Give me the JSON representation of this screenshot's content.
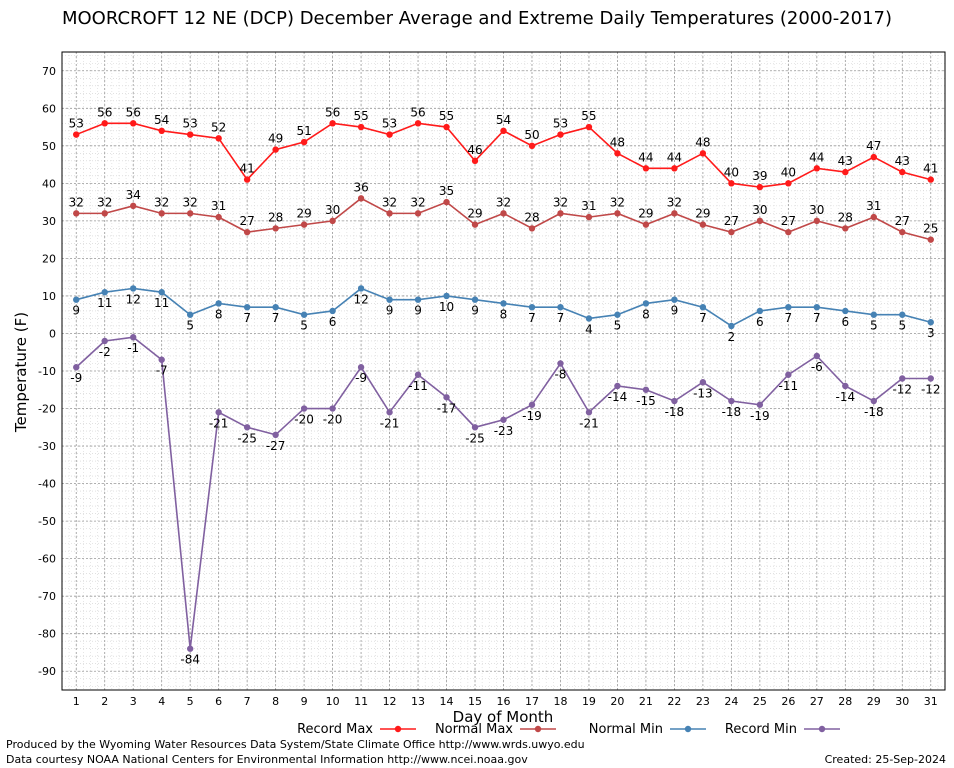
{
  "title": "MOORCROFT 12 NE (DCP) December Average and Extreme Daily Temperatures (2000-2017)",
  "footer": {
    "produced_by": "Produced by the Wyoming Water Resources Data System/State Climate Office http://www.wrds.uwyo.edu",
    "courtesy": "Data courtesy NOAA National Centers for Environmental Information http://www.ncei.noaa.gov",
    "created": "Created:  25-Sep-2024"
  },
  "chart_data": {
    "type": "line",
    "title": "MOORCROFT 12 NE (DCP) December Average and Extreme Daily Temperatures (2000-2017)",
    "xlabel": "Day of Month",
    "ylabel": "Temperature (F)",
    "xlim": [
      0.5,
      31.5
    ],
    "ylim": [
      -95,
      75
    ],
    "x": [
      1,
      2,
      3,
      4,
      5,
      6,
      7,
      8,
      9,
      10,
      11,
      12,
      13,
      14,
      15,
      16,
      17,
      18,
      19,
      20,
      21,
      22,
      23,
      24,
      25,
      26,
      27,
      28,
      29,
      30,
      31
    ],
    "yticks": [
      70,
      60,
      50,
      40,
      30,
      20,
      10,
      0,
      -10,
      -20,
      -30,
      -40,
      -50,
      -60,
      -70,
      -80,
      -90
    ],
    "grid": true,
    "legend_position": "bottom",
    "series": [
      {
        "name": "Record Max",
        "color": "#ff1a1a",
        "values": [
          53,
          56,
          56,
          54,
          53,
          52,
          41,
          49,
          51,
          56,
          55,
          53,
          56,
          55,
          46,
          54,
          50,
          53,
          55,
          48,
          44,
          44,
          48,
          40,
          39,
          40,
          44,
          43,
          47,
          43,
          41
        ]
      },
      {
        "name": "Normal Max",
        "color": "#c04848",
        "values": [
          32,
          32,
          34,
          32,
          32,
          31,
          27,
          28,
          29,
          30,
          36,
          32,
          32,
          35,
          29,
          32,
          28,
          32,
          31,
          32,
          29,
          32,
          29,
          27,
          30,
          27,
          30,
          28,
          31,
          27,
          25
        ]
      },
      {
        "name": "Normal Min",
        "color": "#4682b4",
        "values": [
          9,
          11,
          12,
          11,
          5,
          8,
          7,
          7,
          5,
          6,
          12,
          9,
          9,
          10,
          9,
          8,
          7,
          7,
          4,
          5,
          8,
          9,
          7,
          2,
          6,
          7,
          7,
          6,
          5,
          5,
          3
        ]
      },
      {
        "name": "Record Min",
        "color": "#8060a0",
        "values": [
          -9,
          -2,
          -1,
          -7,
          -84,
          -21,
          -25,
          -27,
          -20,
          -20,
          -9,
          -21,
          -11,
          -17,
          -25,
          -23,
          -19,
          -8,
          -21,
          -14,
          -15,
          -18,
          -13,
          -18,
          -19,
          -11,
          -6,
          -14,
          -18,
          -12,
          -12
        ]
      }
    ]
  }
}
